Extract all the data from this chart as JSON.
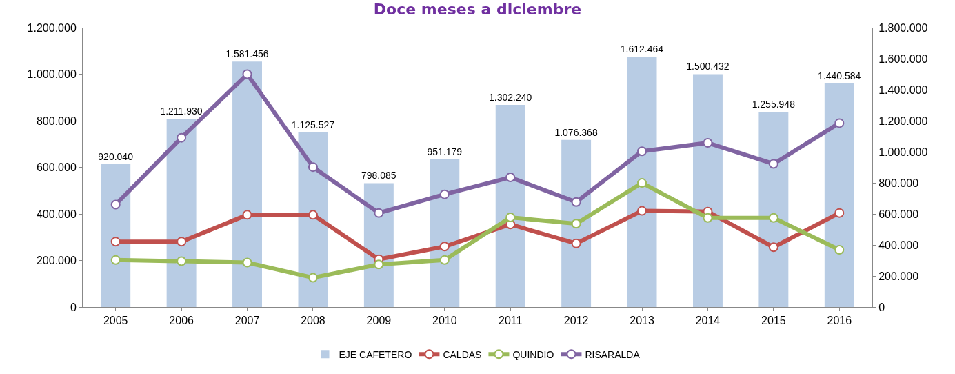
{
  "chart_data": {
    "type": "line",
    "title": "Doce meses a diciembre",
    "categories": [
      "2005",
      "2006",
      "2007",
      "2008",
      "2009",
      "2010",
      "2011",
      "2012",
      "2013",
      "2014",
      "2015",
      "2016"
    ],
    "series": [
      {
        "name": "EJE CAFETERO",
        "type": "bar",
        "axis": "y2",
        "color": "#b8cce4",
        "values": [
          920040,
          1211930,
          1581456,
          1125527,
          798085,
          951179,
          1302240,
          1076368,
          1612464,
          1500432,
          1255948,
          1440584
        ],
        "value_labels": [
          "920.040",
          "1.211.930",
          "1.581.456",
          "1.125.527",
          "798.085",
          "951.179",
          "1.302.240",
          "1.076.368",
          "1.612.464",
          "1.500.432",
          "1.255.948",
          "1.440.584"
        ]
      },
      {
        "name": "CALDAS",
        "color": "#c0504d",
        "values": [
          281000,
          281000,
          396000,
          396000,
          205000,
          260000,
          355000,
          273000,
          413000,
          410000,
          257000,
          404000
        ]
      },
      {
        "name": "QUINDIO",
        "color": "#9bbb59",
        "values": [
          202000,
          197000,
          191000,
          126000,
          183000,
          202000,
          385000,
          358000,
          533000,
          383000,
          383000,
          246000
        ]
      },
      {
        "name": "RISARALDA",
        "color": "#8064a2",
        "values": [
          440000,
          727000,
          1000000,
          601000,
          404000,
          484000,
          557000,
          451000,
          669000,
          705000,
          615000,
          790000
        ]
      }
    ],
    "ylim": [
      0,
      1200000
    ],
    "yticks": [
      0,
      {
        "value": 200000,
        "label": "200.000"
      },
      {
        "value": 400000,
        "label": "400.000"
      },
      {
        "value": 600000,
        "label": "600.000"
      },
      {
        "value": 800000,
        "label": "800.000"
      },
      {
        "value": 1000000,
        "label": "1.000.000"
      },
      {
        "value": 1200000,
        "label": "1.200.000"
      }
    ],
    "y2lim": [
      0,
      1800000
    ],
    "y2ticks": [
      0,
      {
        "value": 200000,
        "label": "200.000"
      },
      {
        "value": 400000,
        "label": "400.000"
      },
      {
        "value": 600000,
        "label": "600.000"
      },
      {
        "value": 800000,
        "label": "800.000"
      },
      {
        "value": 1000000,
        "label": "1.000.000"
      },
      {
        "value": 1200000,
        "label": "1.200.000"
      },
      {
        "value": 1400000,
        "label": "1.400.000"
      },
      {
        "value": 1600000,
        "label": "1.600.000"
      },
      {
        "value": 1800000,
        "label": "1.800.000"
      }
    ],
    "legend": "bottom",
    "marker": "circle",
    "line_style": "solid"
  }
}
